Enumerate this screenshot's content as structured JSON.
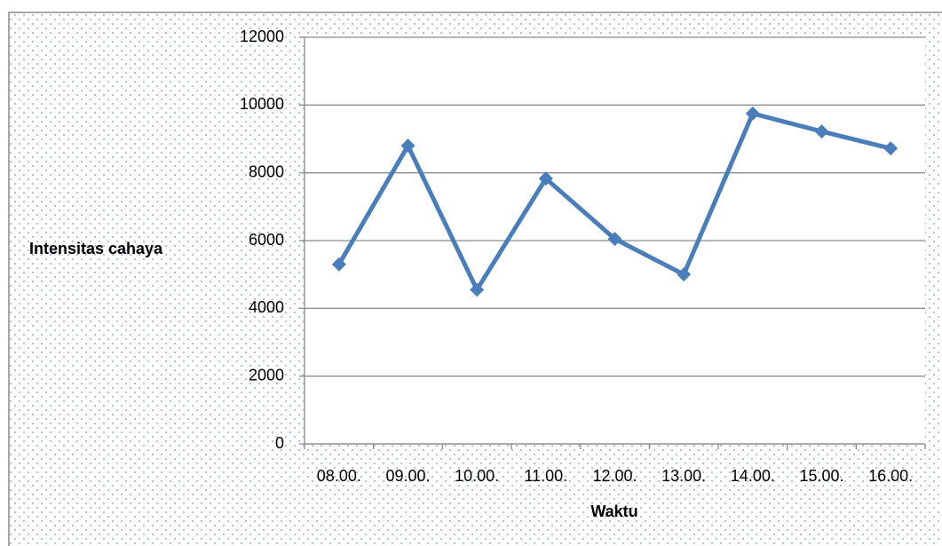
{
  "chart_data": {
    "type": "line",
    "categories": [
      "08.00.",
      "09.00.",
      "10.00.",
      "11.00.",
      "12.00.",
      "13.00.",
      "14.00.",
      "15.00.",
      "16.00."
    ],
    "series": [
      {
        "name": "Intensitas cahaya",
        "color": "#4a7ebb",
        "values": [
          5300,
          8800,
          4550,
          7830,
          6050,
          5000,
          9750,
          9220,
          8720
        ]
      }
    ],
    "x_label": "Waktu",
    "y_label": "Intensitas cahaya",
    "ylim": [
      0,
      12000
    ],
    "yticks": [
      0,
      2000,
      4000,
      6000,
      8000,
      10000,
      12000
    ],
    "grid": true
  }
}
